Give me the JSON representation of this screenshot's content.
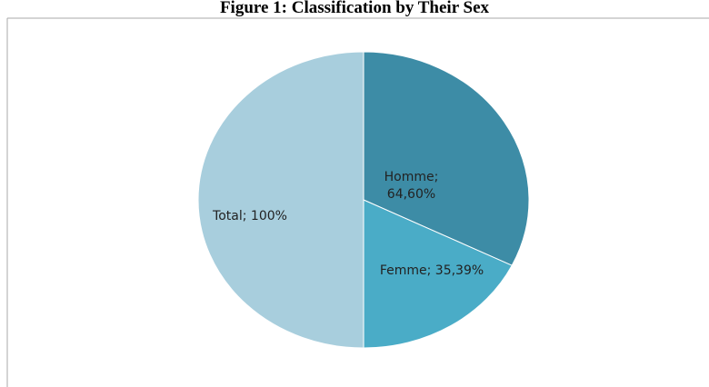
{
  "chart_data": {
    "type": "pie",
    "title": "Figure 1: Classification by Their Sex",
    "values": [
      64.6,
      35.39,
      100
    ],
    "value_labels": [
      "Homme; 64,60%",
      "Femme; 35,39%",
      "Total; 100%"
    ],
    "colors": [
      "#3d8ca6",
      "#4aacc7",
      "#a8cedd"
    ]
  }
}
